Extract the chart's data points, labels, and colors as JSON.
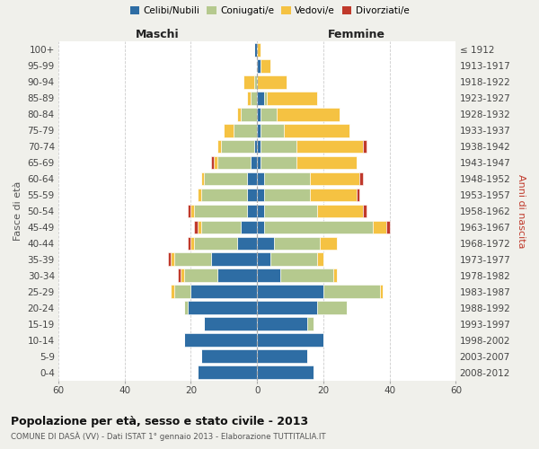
{
  "age_groups": [
    "0-4",
    "5-9",
    "10-14",
    "15-19",
    "20-24",
    "25-29",
    "30-34",
    "35-39",
    "40-44",
    "45-49",
    "50-54",
    "55-59",
    "60-64",
    "65-69",
    "70-74",
    "75-79",
    "80-84",
    "85-89",
    "90-94",
    "95-99",
    "100+"
  ],
  "birth_years": [
    "2008-2012",
    "2003-2007",
    "1998-2002",
    "1993-1997",
    "1988-1992",
    "1983-1987",
    "1978-1982",
    "1973-1977",
    "1968-1972",
    "1963-1967",
    "1958-1962",
    "1953-1957",
    "1948-1952",
    "1943-1947",
    "1938-1942",
    "1933-1937",
    "1928-1932",
    "1923-1927",
    "1918-1922",
    "1913-1917",
    "≤ 1912"
  ],
  "maschi": {
    "celibi": [
      18,
      17,
      22,
      16,
      21,
      20,
      12,
      14,
      6,
      5,
      3,
      3,
      3,
      2,
      1,
      0,
      0,
      0,
      0,
      0,
      1
    ],
    "coniugati": [
      0,
      0,
      0,
      0,
      1,
      5,
      10,
      11,
      13,
      12,
      16,
      14,
      13,
      10,
      10,
      7,
      5,
      2,
      1,
      0,
      0
    ],
    "vedovi": [
      0,
      0,
      0,
      0,
      0,
      1,
      1,
      1,
      1,
      1,
      1,
      1,
      1,
      1,
      1,
      3,
      1,
      1,
      3,
      0,
      0
    ],
    "divorziati": [
      0,
      0,
      0,
      0,
      0,
      0,
      1,
      1,
      1,
      1,
      1,
      0,
      0,
      1,
      0,
      0,
      0,
      0,
      0,
      0,
      0
    ]
  },
  "femmine": {
    "nubili": [
      17,
      15,
      20,
      15,
      18,
      20,
      7,
      4,
      5,
      2,
      2,
      2,
      2,
      1,
      1,
      1,
      1,
      2,
      0,
      1,
      0
    ],
    "coniugate": [
      0,
      0,
      0,
      2,
      9,
      17,
      16,
      14,
      14,
      33,
      16,
      14,
      14,
      11,
      11,
      7,
      5,
      1,
      0,
      0,
      0
    ],
    "vedove": [
      0,
      0,
      0,
      0,
      0,
      1,
      1,
      2,
      5,
      4,
      14,
      14,
      15,
      18,
      20,
      20,
      19,
      15,
      9,
      3,
      1
    ],
    "divorziate": [
      0,
      0,
      0,
      0,
      0,
      0,
      0,
      0,
      0,
      1,
      1,
      1,
      1,
      0,
      1,
      0,
      0,
      0,
      0,
      0,
      0
    ]
  },
  "colors": {
    "celibi_nubili": "#2e6da4",
    "coniugati": "#b5c98e",
    "vedovi": "#f5c242",
    "divorziati": "#c0392b"
  },
  "xlim": 60,
  "title": "Popolazione per età, sesso e stato civile - 2013",
  "subtitle": "COMUNE DI DASÀ (VV) - Dati ISTAT 1° gennaio 2013 - Elaborazione TUTTITALIA.IT",
  "ylabel_left": "Fasce di età",
  "ylabel_right": "Anni di nascita",
  "xlabel_maschi": "Maschi",
  "xlabel_femmine": "Femmine",
  "bg_color": "#f0f0eb",
  "plot_bg": "#ffffff",
  "grid_color": "#cccccc",
  "center_line_color": "#aaaaaa"
}
